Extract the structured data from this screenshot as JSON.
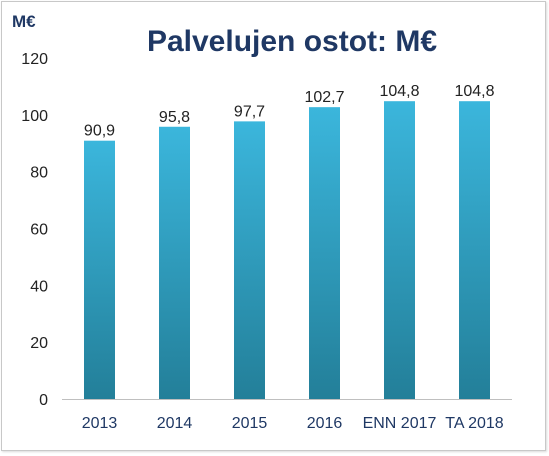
{
  "chart_data": {
    "type": "bar",
    "title": "Palvelujen ostot: M€",
    "unit_label": "M€",
    "categories": [
      "2013",
      "2014",
      "2015",
      "2016",
      "ENN 2017",
      "TA 2018"
    ],
    "values": [
      90.9,
      95.8,
      97.7,
      102.7,
      104.8,
      104.8
    ],
    "data_labels": [
      "90,9",
      "95,8",
      "97,7",
      "102,7",
      "104,8",
      "104,8"
    ],
    "y_ticks": [
      "0",
      "20",
      "40",
      "60",
      "80",
      "100",
      "120"
    ],
    "ylim": [
      0,
      120
    ],
    "grid": false,
    "legend": "none",
    "colors": {
      "bar_top": "#3bb6dc",
      "bar_bottom": "#237f99",
      "title": "#1f3864",
      "axis": "#bfbfbf"
    }
  }
}
